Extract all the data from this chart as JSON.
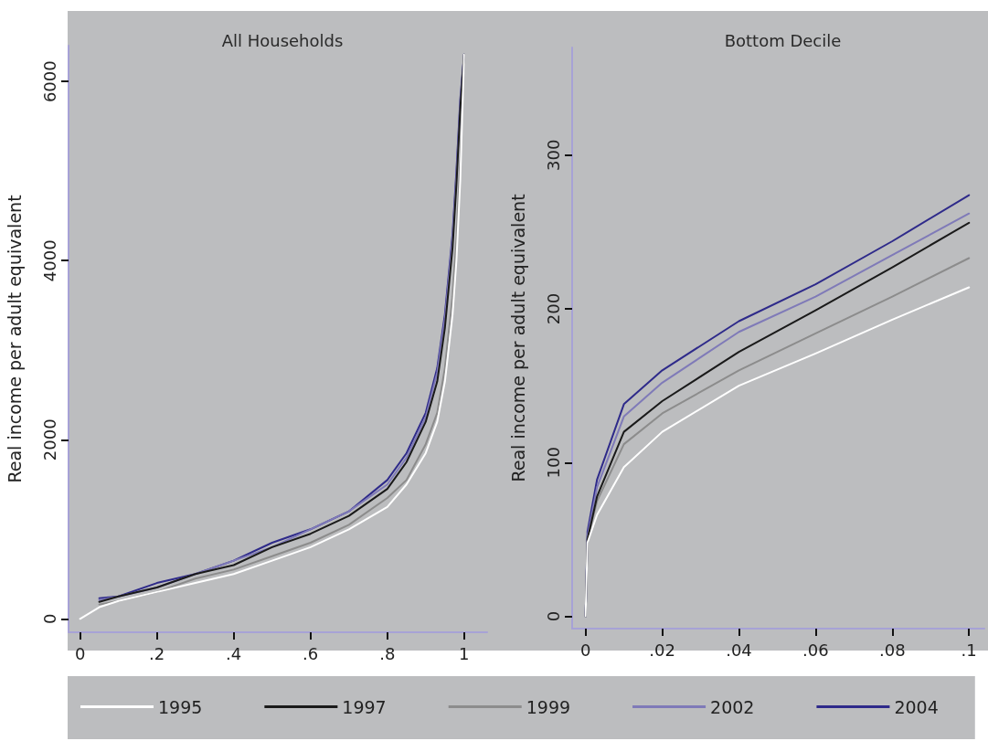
{
  "chart_data": [
    {
      "type": "line",
      "title": "All Households",
      "ylabel": "Real income per adult equivalent",
      "legend": "bottom",
      "marker": "none",
      "xlim": [
        -0.03,
        1.06
      ],
      "xticks": [
        {
          "value": 0,
          "label": "0"
        },
        {
          "value": 0.2,
          "label": ".2"
        },
        {
          "value": 0.4,
          "label": ".4"
        },
        {
          "value": 0.6,
          "label": ".6"
        },
        {
          "value": 0.8,
          "label": ".8"
        },
        1
      ],
      "ylim": [
        -150,
        6400
      ],
      "yticks": [
        {
          "value": 0,
          "label": "0"
        },
        2000,
        4000,
        6000
      ],
      "x": [
        0,
        0.05,
        0.1,
        0.2,
        0.3,
        0.4,
        0.5,
        0.6,
        0.7,
        0.8,
        0.85,
        0.9,
        0.93,
        0.95,
        0.97,
        0.98,
        0.99,
        1
      ],
      "series": [
        {
          "name": "1995",
          "color": "#ffffff",
          "values": [
            0,
            130,
            200,
            300,
            400,
            500,
            650,
            800,
            1000,
            1250,
            1500,
            1850,
            2200,
            2650,
            3400,
            4000,
            4900,
            6300
          ]
        },
        {
          "name": "1997",
          "color": "#1a1a1a",
          "values": [
            null,
            190,
            250,
            350,
            500,
            600,
            800,
            950,
            1150,
            1450,
            1750,
            2200,
            2650,
            3250,
            4150,
            4850,
            5700,
            6300
          ]
        },
        {
          "name": "1999",
          "color": "#8c8c8c",
          "values": [
            null,
            160,
            200,
            300,
            450,
            550,
            700,
            850,
            1050,
            1350,
            1550,
            1950,
            2300,
            2800,
            3600,
            4250,
            5150,
            6300
          ]
        },
        {
          "name": "2002",
          "color": "#7f7ab8",
          "values": [
            null,
            210,
            250,
            350,
            500,
            650,
            800,
            1000,
            1200,
            1500,
            1800,
            2250,
            2750,
            3350,
            4250,
            4950,
            5750,
            6300
          ]
        },
        {
          "name": "2004",
          "color": "#2e2a8a",
          "values": [
            null,
            230,
            250,
            400,
            500,
            650,
            850,
            1000,
            1200,
            1550,
            1850,
            2300,
            2800,
            3400,
            4300,
            5000,
            5800,
            6300
          ]
        }
      ]
    },
    {
      "type": "line",
      "title": "Bottom Decile",
      "ylabel": "Real income per adult equivalent",
      "marker": "none",
      "xlim": [
        -0.0035,
        0.104
      ],
      "xticks": [
        {
          "value": 0,
          "label": "0"
        },
        {
          "value": 0.02,
          "label": ".02"
        },
        {
          "value": 0.04,
          "label": ".04"
        },
        {
          "value": 0.06,
          "label": ".06"
        },
        {
          "value": 0.08,
          "label": ".08"
        },
        {
          "value": 0.1,
          "label": ".1"
        }
      ],
      "ylim": [
        -8,
        370
      ],
      "yticks": [
        {
          "value": 0,
          "label": "0"
        },
        100,
        200,
        300
      ],
      "x": [
        0,
        0.0005,
        0.003,
        0.01,
        0.02,
        0.04,
        0.06,
        0.08,
        0.1
      ],
      "series": [
        {
          "color": "#ffffff",
          "values": [
            0,
            48,
            66,
            97,
            120,
            150,
            171,
            193,
            214
          ]
        },
        {
          "color": "#1a1a1a",
          "values": [
            0,
            50,
            78,
            120,
            140,
            172,
            199,
            227,
            256
          ]
        },
        {
          "color": "#8c8c8c",
          "values": [
            0,
            50,
            75,
            112,
            132,
            160,
            184,
            208,
            233
          ]
        },
        {
          "color": "#7f7ab8",
          "values": [
            0,
            52,
            84,
            130,
            152,
            185,
            208,
            235,
            262
          ]
        },
        {
          "color": "#2e2a8a",
          "values": [
            0,
            55,
            89,
            138,
            160,
            192,
            216,
            244,
            274
          ]
        }
      ]
    }
  ]
}
